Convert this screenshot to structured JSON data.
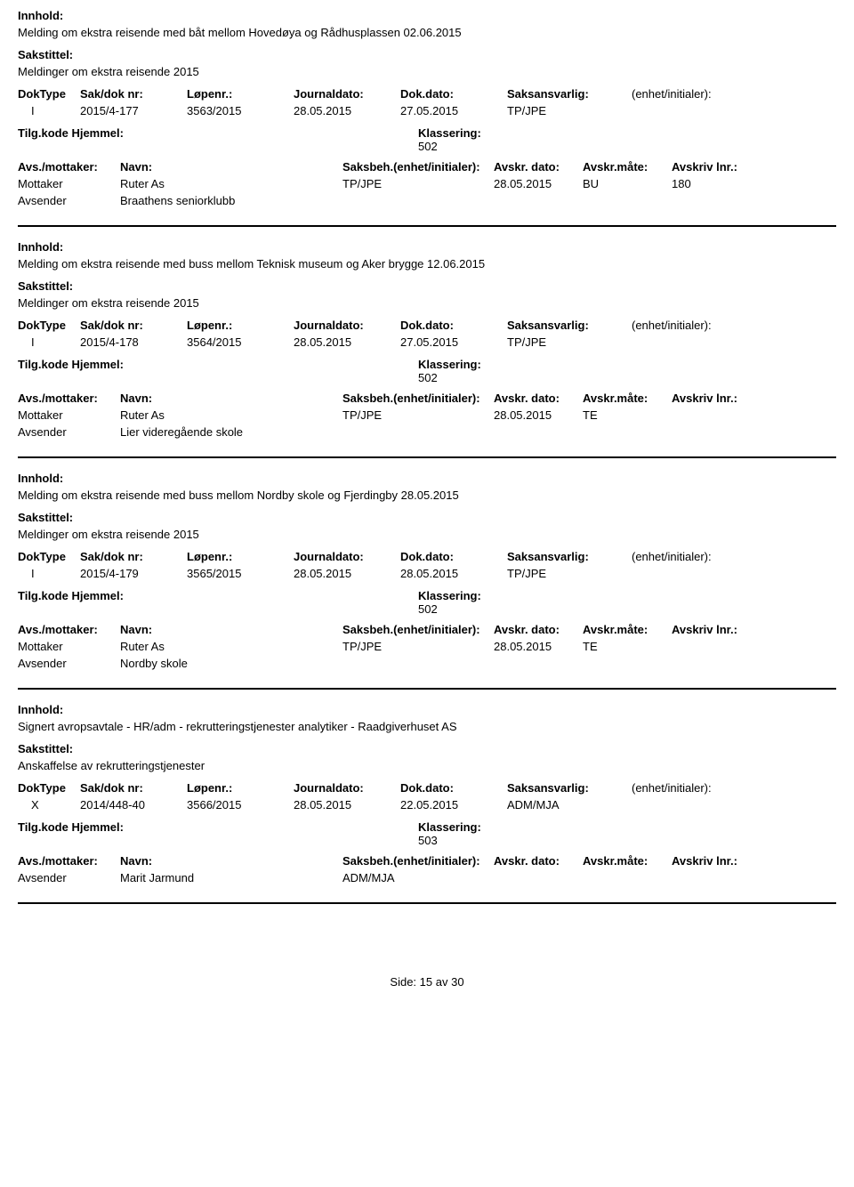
{
  "labels": {
    "innhold": "Innhold:",
    "sakstittel": "Sakstittel:",
    "doktype": "DokType",
    "saknr": "Sak/dok nr:",
    "lopenr": "Løpenr.:",
    "jdato": "Journaldato:",
    "ddato": "Dok.dato:",
    "saksansv": "Saksansvarlig:",
    "enhet": "(enhet/initialer):",
    "tilgkode": "Tilg.kode",
    "hjemmel": "Hjemmel:",
    "klassering": "Klassering:",
    "avsmottaker": "Avs./mottaker:",
    "navn": "Navn:",
    "saksbeh": "Saksbeh.(enhet/initialer):",
    "avskrdato": "Avskr. dato:",
    "avskrmate": "Avskr.måte:",
    "avskrlnr": "Avskriv lnr.:"
  },
  "records": [
    {
      "innhold": "Melding om ekstra reisende med båt mellom Hovedøya og Rådhusplassen 02.06.2015",
      "sakstittel": "Meldinger om ekstra reisende 2015",
      "doktype": "I",
      "saknr": "2015/4-177",
      "lopenr": "3563/2015",
      "jdato": "28.05.2015",
      "ddato": "27.05.2015",
      "saksansv": "TP/JPE",
      "klassering": "502",
      "parties": [
        {
          "role": "Mottaker",
          "navn": "Ruter As",
          "saksbeh": "TP/JPE",
          "avskrdato": "28.05.2015",
          "avskrmate": "BU",
          "avskrlnr": "180"
        },
        {
          "role": "Avsender",
          "navn": "Braathens seniorklubb",
          "saksbeh": "",
          "avskrdato": "",
          "avskrmate": "",
          "avskrlnr": ""
        }
      ]
    },
    {
      "innhold": "Melding om ekstra reisende med buss mellom Teknisk museum og Aker brygge 12.06.2015",
      "sakstittel": "Meldinger om ekstra reisende 2015",
      "doktype": "I",
      "saknr": "2015/4-178",
      "lopenr": "3564/2015",
      "jdato": "28.05.2015",
      "ddato": "27.05.2015",
      "saksansv": "TP/JPE",
      "klassering": "502",
      "parties": [
        {
          "role": "Mottaker",
          "navn": "Ruter As",
          "saksbeh": "TP/JPE",
          "avskrdato": "28.05.2015",
          "avskrmate": "TE",
          "avskrlnr": ""
        },
        {
          "role": "Avsender",
          "navn": "Lier videregående skole",
          "saksbeh": "",
          "avskrdato": "",
          "avskrmate": "",
          "avskrlnr": ""
        }
      ]
    },
    {
      "innhold": "Melding om ekstra reisende med buss mellom Nordby skole og Fjerdingby 28.05.2015",
      "sakstittel": "Meldinger om ekstra reisende 2015",
      "doktype": "I",
      "saknr": "2015/4-179",
      "lopenr": "3565/2015",
      "jdato": "28.05.2015",
      "ddato": "28.05.2015",
      "saksansv": "TP/JPE",
      "klassering": "502",
      "parties": [
        {
          "role": "Mottaker",
          "navn": "Ruter As",
          "saksbeh": "TP/JPE",
          "avskrdato": "28.05.2015",
          "avskrmate": "TE",
          "avskrlnr": ""
        },
        {
          "role": "Avsender",
          "navn": "Nordby skole",
          "saksbeh": "",
          "avskrdato": "",
          "avskrmate": "",
          "avskrlnr": ""
        }
      ]
    },
    {
      "innhold": "Signert avropsavtale - HR/adm - rekrutteringstjenester analytiker - Raadgiverhuset AS",
      "sakstittel": "Anskaffelse av rekrutteringstjenester",
      "doktype": "X",
      "saknr": "2014/448-40",
      "lopenr": "3566/2015",
      "jdato": "28.05.2015",
      "ddato": "22.05.2015",
      "saksansv": "ADM/MJA",
      "klassering": "503",
      "parties": [
        {
          "role": "Avsender",
          "navn": "Marit Jarmund",
          "saksbeh": "ADM/MJA",
          "avskrdato": "",
          "avskrmate": "",
          "avskrlnr": ""
        }
      ]
    }
  ],
  "footer": {
    "side": "Side:",
    "page": "15",
    "av": "av",
    "total": "30"
  }
}
